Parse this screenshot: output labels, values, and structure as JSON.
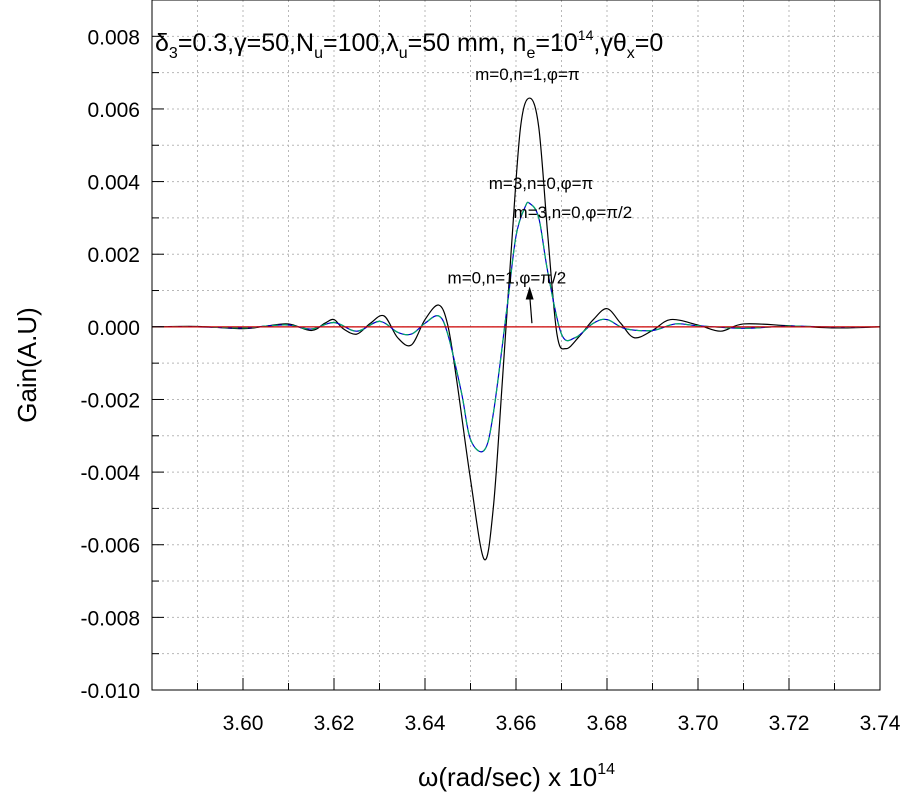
{
  "chart_data": {
    "type": "line",
    "title": {
      "delta": "δ",
      "delta_sub": "3",
      "t1": "=0.3,",
      "gamma1": "γ",
      "t2": "=50,N",
      "N_sub": "u",
      "t3": "=100,",
      "lambda": "λ",
      "lambda_sub": "u",
      "t4": "=50 mm, n",
      "n_sub": "e",
      "t5": "=10",
      "exp": "14",
      "t6": ",",
      "gamma2": "γ",
      "theta": "θ",
      "theta_sub": "x",
      "t7": "=0"
    },
    "xlabel": {
      "omega": "ω",
      "rest": "(rad/sec) x 10",
      "exp": "14"
    },
    "ylabel": "Gain(A.U)",
    "xlim": [
      3.58,
      3.74
    ],
    "ylim": [
      -0.01,
      0.009
    ],
    "grid": true,
    "x_ticks": [
      {
        "value": 3.6,
        "label": "3.60"
      },
      {
        "value": 3.62,
        "label": "3.62"
      },
      {
        "value": 3.64,
        "label": "3.64"
      },
      {
        "value": 3.66,
        "label": "3.66"
      },
      {
        "value": 3.68,
        "label": "3.68"
      },
      {
        "value": 3.7,
        "label": "3.70"
      },
      {
        "value": 3.72,
        "label": "3.72"
      },
      {
        "value": 3.74,
        "label": "3.74"
      }
    ],
    "y_ticks": [
      {
        "value": 0.008,
        "label": "0.008"
      },
      {
        "value": 0.006,
        "label": "0.006"
      },
      {
        "value": 0.004,
        "label": "0.004"
      },
      {
        "value": 0.002,
        "label": "0.002"
      },
      {
        "value": 0.0,
        "label": "0.000"
      },
      {
        "value": -0.002,
        "label": "-0.002"
      },
      {
        "value": -0.004,
        "label": "-0.004"
      },
      {
        "value": -0.006,
        "label": "-0.006"
      },
      {
        "value": -0.008,
        "label": "-0.008"
      },
      {
        "value": -0.01,
        "label": "-0.010"
      }
    ],
    "series": [
      {
        "name": "m=0,n=1,φ=π",
        "color": "#000000",
        "style": "solid",
        "x": [
          3.58,
          3.59,
          3.6,
          3.605,
          3.61,
          3.615,
          3.618,
          3.62,
          3.622,
          3.625,
          3.628,
          3.631,
          3.634,
          3.637,
          3.64,
          3.643,
          3.645,
          3.647,
          3.65,
          3.653,
          3.655,
          3.657,
          3.659,
          3.661,
          3.663,
          3.665,
          3.667,
          3.669,
          3.671,
          3.674,
          3.677,
          3.68,
          3.683,
          3.686,
          3.69,
          3.694,
          3.7,
          3.705,
          3.71,
          3.72,
          3.73,
          3.74
        ],
        "y": [
          0.0,
          1e-05,
          -5e-05,
          2e-05,
          8e-05,
          -0.0001,
          0.0001,
          0.0002,
          -5e-05,
          -0.0002,
          0.0001,
          0.0003,
          -0.0003,
          -0.0005,
          0.0002,
          0.0006,
          5e-05,
          -0.0015,
          -0.0042,
          -0.0064,
          -0.005,
          -0.0015,
          0.0022,
          0.0055,
          0.0063,
          0.0055,
          0.0025,
          -0.0002,
          -0.0006,
          -0.00025,
          0.0002,
          0.0005,
          0.0001,
          -0.0003,
          -0.0001,
          0.0002,
          5e-05,
          -0.00012,
          8e-05,
          3e-05,
          -3e-05,
          0.0
        ]
      },
      {
        "name": "m=3,n=0,φ=π",
        "color": "#0000cc",
        "style": "solid",
        "x": [
          3.58,
          3.59,
          3.6,
          3.605,
          3.61,
          3.615,
          3.62,
          3.625,
          3.63,
          3.634,
          3.637,
          3.64,
          3.643,
          3.645,
          3.648,
          3.65,
          3.653,
          3.655,
          3.658,
          3.66,
          3.662,
          3.663,
          3.665,
          3.667,
          3.67,
          3.673,
          3.677,
          3.68,
          3.684,
          3.69,
          3.695,
          3.7,
          3.71,
          3.72,
          3.73,
          3.74
        ],
        "y": [
          0.0,
          0.0,
          -3e-05,
          2e-05,
          5e-05,
          -6e-05,
          0.00012,
          -0.00012,
          0.00015,
          -0.00015,
          -0.0002,
          0.0001,
          0.0003,
          -0.0002,
          -0.0018,
          -0.0031,
          -0.0034,
          -0.0024,
          0.0005,
          0.0025,
          0.0033,
          0.0034,
          0.003,
          0.0015,
          -0.0002,
          -0.0003,
          0.0001,
          0.0002,
          -5e-05,
          -0.0001,
          8e-05,
          3e-05,
          -4e-05,
          2e-05,
          -1e-05,
          0.0
        ]
      },
      {
        "name": "m=3,n=0,φ=π/2",
        "color": "#00aa66",
        "style": "dash",
        "x": [
          3.58,
          3.59,
          3.6,
          3.605,
          3.61,
          3.615,
          3.62,
          3.625,
          3.63,
          3.634,
          3.637,
          3.64,
          3.643,
          3.645,
          3.648,
          3.65,
          3.653,
          3.655,
          3.658,
          3.66,
          3.662,
          3.663,
          3.665,
          3.667,
          3.67,
          3.673,
          3.677,
          3.68,
          3.684,
          3.69,
          3.695,
          3.7,
          3.71,
          3.72,
          3.73,
          3.74
        ],
        "y": [
          0.0,
          0.0,
          -3e-05,
          2e-05,
          5e-05,
          -6e-05,
          0.00012,
          -0.00012,
          0.00015,
          -0.00015,
          -0.0002,
          0.0001,
          0.0003,
          -0.0002,
          -0.0018,
          -0.0031,
          -0.0034,
          -0.0024,
          0.0005,
          0.0025,
          0.0033,
          0.0034,
          0.003,
          0.0015,
          -0.0002,
          -0.0003,
          0.0001,
          0.0002,
          -5e-05,
          -0.0001,
          8e-05,
          3e-05,
          -4e-05,
          2e-05,
          -1e-05,
          0.0
        ]
      },
      {
        "name": "m=0,n=1,φ=π/2",
        "color": "#cc0000",
        "style": "solid",
        "x": [
          3.58,
          3.74
        ],
        "y": [
          0.0,
          0.0
        ]
      }
    ],
    "annotations": [
      {
        "text": "m=0,n=1,φ=π",
        "x": 3.6625,
        "y": 0.0068
      },
      {
        "text": "m=3,n=0,φ=π",
        "x": 3.6655,
        "y": 0.0038
      },
      {
        "text": "m=3,n=0,φ=π/2",
        "x": 3.6725,
        "y": 0.003
      },
      {
        "text": "m=0,n=1,φ=π/2",
        "x": 3.658,
        "y": 0.0012
      }
    ],
    "arrow": {
      "from": [
        3.6635,
        0.0001
      ],
      "to": [
        3.663,
        0.001
      ]
    }
  }
}
